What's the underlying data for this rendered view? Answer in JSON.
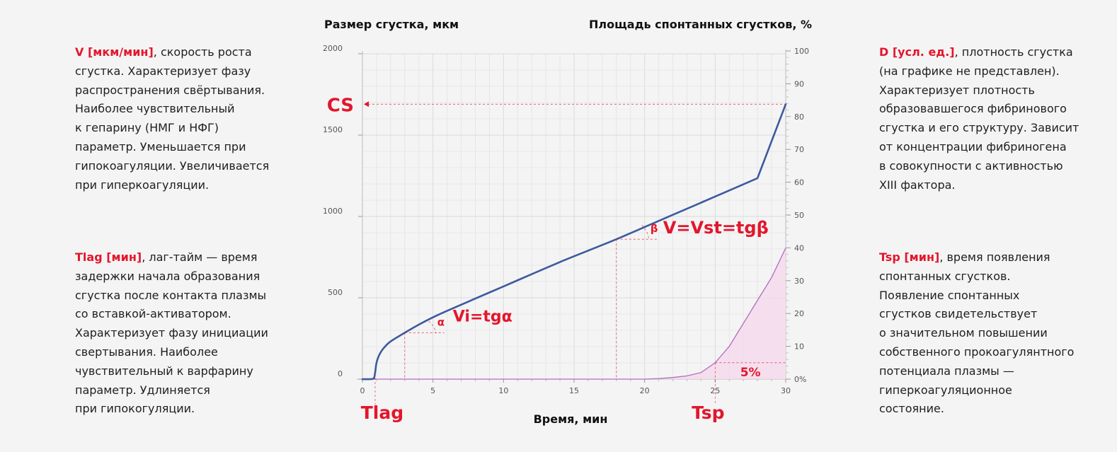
{
  "descriptions": {
    "v": {
      "key": "V [мкм/мин]",
      "text": ", скорость роста\nсгустка. Характеризует фазу\nраспространения свёртывания.\nНаиболее чувствительный\nк гепарину (НМГ и НФГ)\nпараметр. Уменьшается при\nгипокоагуляции. Увеличивается\nпри гиперкоагуляции."
    },
    "tlag": {
      "key": "Tlag [мин]",
      "text": ", лаг-тайм — время\nзадержки начала образования\nсгустка после контакта плазмы\nсо вставкой-активатором.\nХарактеризует фазу инициации\nсвертывания. Наиболее\nчувствительный к варфарину\nпараметр. Удлиняется\nпри гипокогуляции."
    },
    "d": {
      "key": "D [усл. ед.]",
      "text": ", плотность сгустка\n(на графике не представлен).\nХарактеризует плотность\nобразовавшегося фибринового\nсгустка и его структуру. Зависит\nот концентрации фибриногена\nв совокупности с активностью\nXIII фактора."
    },
    "tsp": {
      "key": "Tsp [мин]",
      "text": ", время появления\nспонтанных сгустков.\nПоявление спонтанных\nсгустков свидетельствует\nо значительном повышении\nсобственного прокоагулянтного\nпотенциала плазмы —\nгиперкоагуляционное\nсостояние."
    }
  },
  "colors": {
    "accent_red": "#e3162c",
    "clot_line": "#3d5a9e",
    "spont_line": "#b36bc0",
    "spont_fill": "#f5d9ec",
    "text": "#1e1e1e",
    "background": "#f4f4f4"
  },
  "chart_data": {
    "type": "line",
    "xlabel": "Время, мин",
    "ylabel_left": "Размер сгустка, мкм",
    "ylabel_right": "Площадь спонтанных сгустков, %",
    "x_ticks": [
      "0",
      "5",
      "10",
      "15",
      "20",
      "25",
      "30"
    ],
    "y_left_ticks": [
      "0",
      "500",
      "1000",
      "1500",
      "2000"
    ],
    "y_right_ticks": [
      "0%",
      "10",
      "20",
      "30",
      "40",
      "50",
      "60",
      "70",
      "80",
      "90",
      "100"
    ],
    "xlim": [
      0,
      30
    ],
    "ylim_left": [
      0,
      2000
    ],
    "ylim_right": [
      0,
      100
    ],
    "grid": true,
    "series": [
      {
        "axis": "left",
        "x": [
          0,
          0.5,
          0.8,
          0.9,
          1.0,
          1.2,
          1.5,
          2.0,
          3.0,
          4.0,
          5.0,
          6.0,
          8.0,
          10,
          12,
          14,
          16,
          18,
          20,
          22,
          24,
          26,
          28,
          30
        ],
        "y": [
          0,
          0,
          5,
          40,
          100,
          150,
          190,
          232,
          285,
          335,
          380,
          420,
          495,
          570,
          645,
          720,
          790,
          860,
          935,
          1010,
          1085,
          1160,
          1235,
          1690
        ]
      },
      {
        "axis": "right",
        "x": [
          0,
          20,
          21,
          22,
          23,
          24,
          25,
          26,
          27,
          28,
          29,
          30
        ],
        "y": [
          0,
          0,
          0.2,
          0.5,
          1,
          2,
          5,
          10,
          17,
          24,
          31,
          40
        ]
      }
    ],
    "annotations": {
      "cs_label": "CS",
      "cs_value": 1690,
      "vi_label": "Vi=tgα",
      "vi_angle": "α",
      "vi_x": 3,
      "vst_label": "V=Vst=tgβ",
      "vst_angle": "β",
      "vst_x": 18,
      "tlag_label": "Tlag",
      "tlag_x": 0.9,
      "tsp_label": "Tsp",
      "tsp_x": 25,
      "tsp_threshold_label": "5%",
      "tsp_threshold_value": 5
    }
  }
}
